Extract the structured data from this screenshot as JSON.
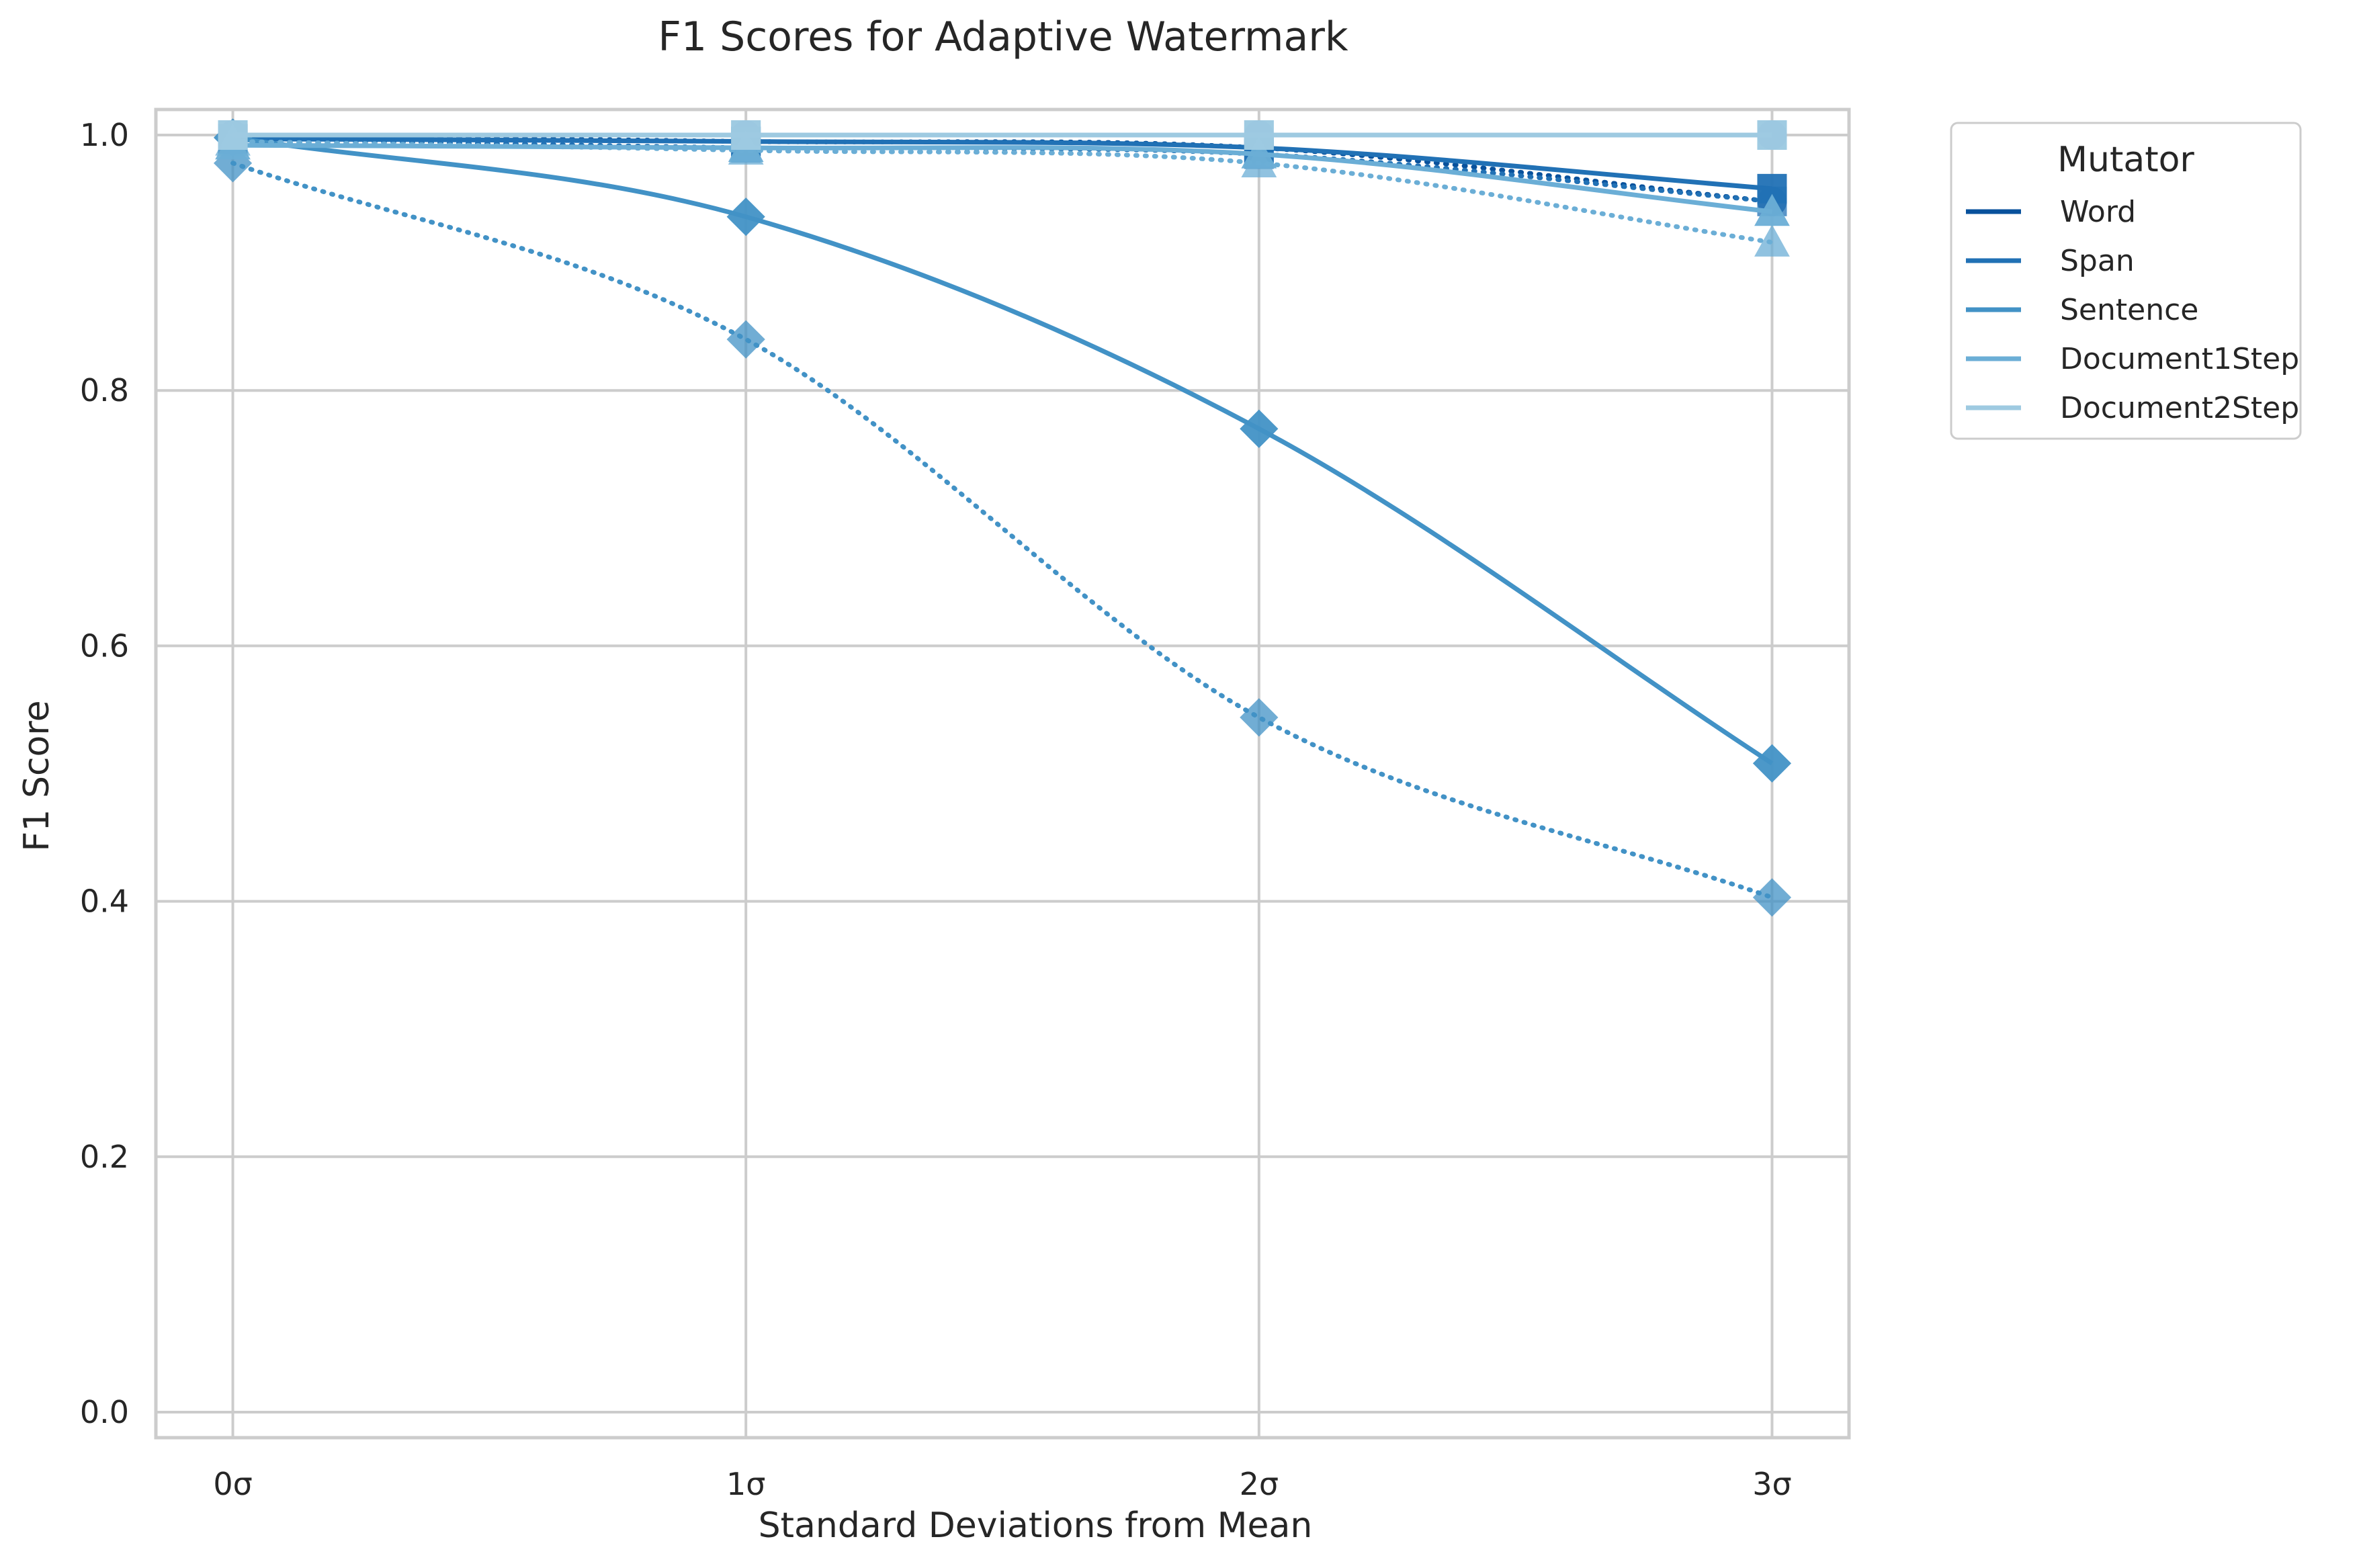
{
  "chart_data": {
    "type": "line",
    "title": "F1 Scores for Adaptive Watermark",
    "xlabel": "Standard Deviations from Mean",
    "ylabel": "F1 Score",
    "x": [
      0,
      1,
      2,
      3
    ],
    "x_tick_labels": [
      "0σ",
      "1σ",
      "2σ",
      "3σ"
    ],
    "y_ticks": [
      0.0,
      0.2,
      0.4,
      0.6,
      0.8,
      1.0
    ],
    "y_tick_labels": [
      "0.0",
      "0.2",
      "0.4",
      "0.6",
      "0.8",
      "1.0"
    ],
    "xlim": [
      -0.15,
      3.15
    ],
    "ylim": [
      -0.02,
      1.02
    ],
    "grid": true,
    "legend": {
      "title": "Mutator",
      "placement": "outside-top-right",
      "entries": [
        "Word",
        "Span",
        "Sentence",
        "Document1Step",
        "Document2Step"
      ]
    },
    "series": [
      {
        "name": "Word",
        "marker": "circle",
        "linestyle": "solid",
        "color": "#08519c",
        "values": [
          1.0,
          1.0,
          1.0,
          1.0
        ]
      },
      {
        "name": "Word",
        "marker": "circle",
        "linestyle": "dotted",
        "color": "#08519c",
        "values": [
          1.0,
          0.995,
          0.99,
          0.948
        ],
        "legend": false
      },
      {
        "name": "Span",
        "marker": "square",
        "linestyle": "solid",
        "color": "#2171b5",
        "values": [
          0.997,
          0.995,
          0.99,
          0.958
        ]
      },
      {
        "name": "Span",
        "marker": "square",
        "linestyle": "dotted",
        "color": "#2171b5",
        "values": [
          0.997,
          0.99,
          0.985,
          0.948
        ],
        "legend": false
      },
      {
        "name": "Sentence",
        "marker": "diamond",
        "linestyle": "solid",
        "color": "#4292c6",
        "values": [
          0.998,
          0.936,
          0.77,
          0.508
        ]
      },
      {
        "name": "Sentence",
        "marker": "diamond",
        "linestyle": "dotted",
        "color": "#4292c6",
        "values": [
          0.978,
          0.84,
          0.544,
          0.403
        ],
        "legend": false
      },
      {
        "name": "Document1Step",
        "marker": "triangle",
        "linestyle": "solid",
        "color": "#6baed6",
        "values": [
          0.992,
          0.99,
          0.985,
          0.94
        ]
      },
      {
        "name": "Document1Step",
        "marker": "triangle",
        "linestyle": "dotted",
        "color": "#6baed6",
        "values": [
          0.995,
          0.988,
          0.978,
          0.916
        ],
        "legend": false
      },
      {
        "name": "Document2Step",
        "marker": "square",
        "linestyle": "solid",
        "color": "#9ecae1",
        "values": [
          1.0,
          1.0,
          1.0,
          1.0
        ]
      },
      {
        "name": "Document2Step",
        "marker": "square",
        "linestyle": "dotted",
        "color": "#9ecae1",
        "values": [
          1.0,
          1.0,
          1.0,
          1.0
        ],
        "legend": false
      }
    ]
  }
}
